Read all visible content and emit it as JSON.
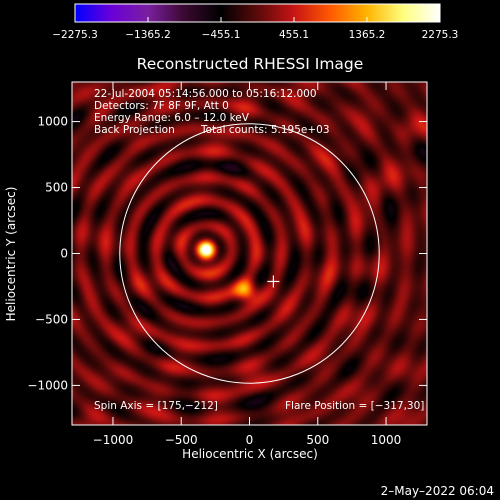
{
  "chart_data": {
    "type": "heatmap",
    "title": "Reconstructed RHESSI Image",
    "xlabel": "Heliocentric X (arcsec)",
    "ylabel": "Heliocentric Y (arcsec)",
    "xlim": [
      -1300,
      1300
    ],
    "ylim": [
      -1300,
      1300
    ],
    "x_ticks": [
      "−1000",
      "−500",
      "0",
      "500",
      "1000"
    ],
    "x_tick_values": [
      -1000,
      -500,
      0,
      500,
      1000
    ],
    "y_ticks": [
      "1000",
      "500",
      "0",
      "−500",
      "−1000"
    ],
    "y_tick_values": [
      1000,
      500,
      0,
      -500,
      -1000
    ],
    "colorbar": {
      "min": -2275.3,
      "max": 2275.3,
      "tick_labels": [
        "−2275.3",
        "−1365.2",
        "−455.1",
        "455.1",
        "1365.2",
        "2275.3"
      ],
      "tick_values": [
        -2275.3,
        -1365.2,
        -455.1,
        455.1,
        1365.2,
        2275.3
      ],
      "colors": [
        "#0000ff",
        "#6a00d8",
        "#7a1fa0",
        "#3a0830",
        "#000000",
        "#5a0a0a",
        "#c81414",
        "#ff5a00",
        "#ffb400",
        "#ffff80",
        "#ffffff"
      ]
    },
    "info_lines": [
      "22-Jul-2004 05:14:56.000 to 05:16:12.000",
      "Detectors: 7F 8F 9F, Att 0",
      "Energy Range: 6.0 – 12.0 keV",
      "Back Projection"
    ],
    "total_counts": "Total counts: 5.195e+03",
    "spin_axis_label": "Spin Axis = [175,−212]",
    "flare_position_label": "Flare Position = [−317,30]",
    "spin_axis": [
      175,
      -212
    ],
    "flare_position": [
      -317,
      30
    ],
    "solar_disk": {
      "center": [
        0,
        0
      ],
      "radius": 950
    },
    "sources": [
      {
        "x": -317,
        "y": 30,
        "value": 2275.3
      },
      {
        "x": -30,
        "y": -280,
        "value": 1500
      }
    ]
  },
  "footer": {
    "date": "2–May–2022 06:04"
  }
}
